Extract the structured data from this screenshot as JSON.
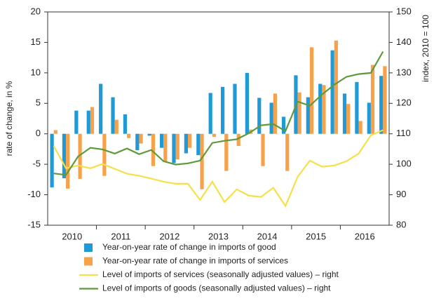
{
  "chart_data": {
    "type": "combo",
    "categories": [
      "2010",
      "2011",
      "2012",
      "2013",
      "2014",
      "2015",
      "2016"
    ],
    "y_label": "rate of change, in %",
    "y2_label": "index, 2010 = 100",
    "ylim": [
      -15,
      20
    ],
    "yticks": [
      -15,
      -10,
      -5,
      0,
      5,
      10,
      15,
      20
    ],
    "y2lim": [
      80,
      150
    ],
    "y2ticks": [
      80,
      90,
      100,
      110,
      120,
      130,
      140,
      150
    ],
    "series": [
      {
        "name": "Year-on-year rate of change in imports of good",
        "type": "bar",
        "color": "#1f9ad6",
        "values": [
          [
            -8.8,
            -7.3,
            3.8,
            3.8
          ],
          [
            8.2,
            6.0,
            3.2,
            -2.7
          ],
          [
            -0.3,
            -2.3,
            -4.8,
            -3.2
          ],
          [
            -3.5,
            6.7,
            7.7,
            8.2
          ],
          [
            10.0,
            5.9,
            5.1,
            2.8
          ],
          [
            9.6,
            6.0,
            8.2,
            13.7
          ],
          [
            6.6,
            8.5,
            5.1,
            9.5
          ]
        ]
      },
      {
        "name": "Year-on-year rate of change in imports of services",
        "type": "bar",
        "color": "#f7a24b",
        "values": [
          [
            0.6,
            -9.0,
            -7.4,
            4.4
          ],
          [
            -6.9,
            2.3,
            -0.7,
            -1.6
          ],
          [
            -5.3,
            -4.5,
            -4.2,
            -2.3
          ],
          [
            -9.1,
            -0.5,
            -6.1,
            -2.0
          ],
          [
            0.7,
            -5.3,
            6.6,
            -6.1
          ],
          [
            6.8,
            14.2,
            8.0,
            15.3
          ],
          [
            4.9,
            2.1,
            11.3,
            11.1
          ]
        ]
      },
      {
        "name": "Level of imports of services (seasonally adjusted values) – right",
        "type": "line",
        "axis": "y2",
        "color": "#f5e04a",
        "values": [
          [
            106.0,
            98.7,
            99.6,
            98.7
          ],
          [
            100.1,
            98.5,
            96.9,
            96.2
          ],
          [
            95.3,
            94.3,
            93.6,
            93.6
          ],
          [
            88.3,
            94.3,
            87.6,
            91.8
          ],
          [
            89.7,
            89.3,
            92.3,
            86.3
          ],
          [
            95.9,
            101.2,
            99.2,
            99.6
          ],
          [
            101.0,
            103.5,
            109.5,
            111.2
          ]
        ]
      },
      {
        "name": "Level of imports of goods (seasonally adjusted values) – right",
        "type": "line",
        "axis": "y2",
        "color": "#5e9a3c",
        "values": [
          [
            97.0,
            96.5,
            102.6,
            105.4
          ],
          [
            104.9,
            103.5,
            105.2,
            103.3
          ],
          [
            104.7,
            101.0,
            99.9,
            100.3
          ],
          [
            101.2,
            107.0,
            107.7,
            108.2
          ],
          [
            110.2,
            112.8,
            113.2,
            110.9
          ],
          [
            120.6,
            119.2,
            122.9,
            126.1
          ],
          [
            128.7,
            129.6,
            130.0,
            137.0
          ]
        ]
      }
    ]
  }
}
